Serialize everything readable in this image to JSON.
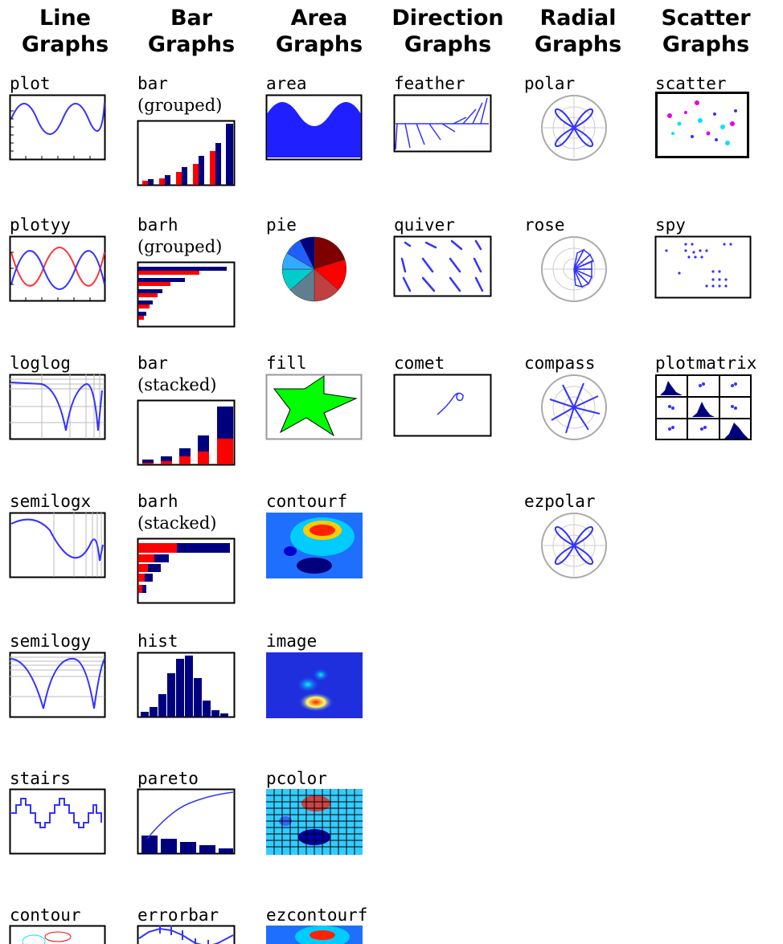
{
  "columns": [
    {
      "line1": "Line",
      "line2": "Graphs"
    },
    {
      "line1": "Bar",
      "line2": "Graphs"
    },
    {
      "line1": "Area",
      "line2": "Graphs"
    },
    {
      "line1": "Direction",
      "line2": "Graphs"
    },
    {
      "line1": "Radial",
      "line2": "Graphs"
    },
    {
      "line1": "Scatter",
      "line2": "Graphs"
    }
  ],
  "items": {
    "plot": "plot",
    "plotyy": "plotyy",
    "loglog": "loglog",
    "semilogx": "semilogx",
    "semilogy": "semilogy",
    "stairs": "stairs",
    "contour": "contour",
    "bar_grouped": "bar",
    "bar_grouped_sub": "(grouped)",
    "barh_grouped": "barh",
    "barh_grouped_sub": "(grouped)",
    "bar_stacked": "bar",
    "bar_stacked_sub": "(stacked)",
    "barh_stacked": "barh",
    "barh_stacked_sub": "(stacked)",
    "hist": "hist",
    "pareto": "pareto",
    "errorbar": "errorbar",
    "area": "area",
    "pie": "pie",
    "fill": "fill",
    "contourf": "contourf",
    "image": "image",
    "pcolor": "pcolor",
    "ezcontourf": "ezcontourf",
    "feather": "feather",
    "quiver": "quiver",
    "comet": "comet",
    "polar": "polar",
    "rose": "rose",
    "compass": "compass",
    "ezpolar": "ezpolar",
    "scatter": "scatter",
    "spy": "spy",
    "plotmatrix": "plotmatrix"
  },
  "colors": {
    "blue": "#1f1fff",
    "navy": "#00007f",
    "red": "#ff0000",
    "green": "#00ff00",
    "cyan": "#00e5ff",
    "magenta": "#e600e6"
  }
}
